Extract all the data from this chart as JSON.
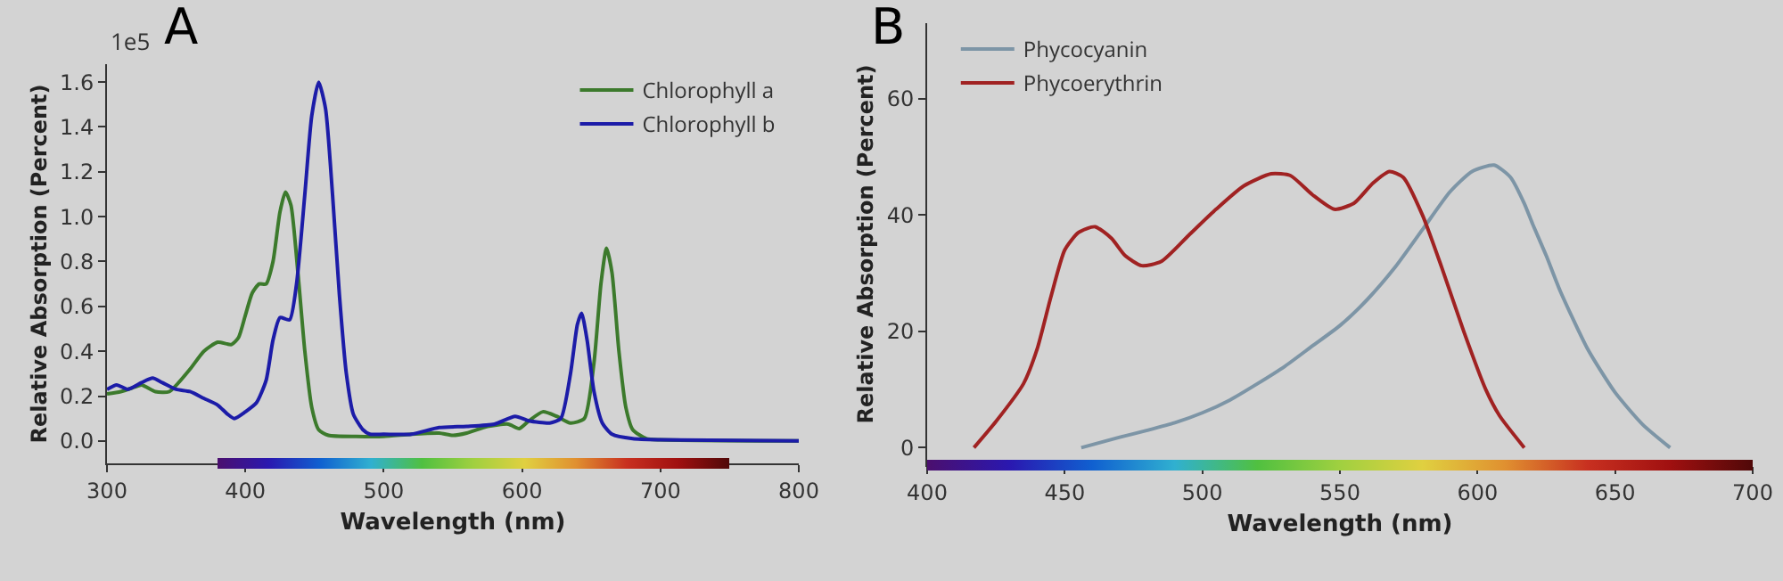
{
  "chart_data": [
    {
      "type": "line",
      "title": "A",
      "xlabel": "Wavelength (nm)",
      "ylabel": "Relative Absorption (Percent)",
      "annotations": [
        "1e5"
      ],
      "xlim": [
        300,
        800
      ],
      "xticks": [
        300,
        400,
        500,
        600,
        700,
        800
      ],
      "ylim": [
        -0.1,
        1.68
      ],
      "yticks": [
        {
          "value": 0,
          "label": "0.0"
        },
        0.2,
        0.4,
        0.6,
        0.8,
        {
          "value": 1,
          "label": "1.0"
        },
        1.2,
        1.4,
        1.6
      ],
      "grid": false,
      "legend": "top right",
      "series": [
        {
          "name": "Chlorophyll a",
          "color": "#3c7a2c",
          "x": [
            300,
            310,
            320,
            325,
            335,
            345,
            360,
            370,
            380,
            390,
            395,
            400,
            405,
            410,
            415,
            420,
            425,
            429,
            433,
            438,
            443,
            448,
            453,
            460,
            480,
            500,
            520,
            540,
            550,
            560,
            575,
            590,
            598,
            605,
            615,
            625,
            635,
            645,
            652,
            657,
            661,
            665,
            670,
            675,
            680,
            690,
            700,
            800
          ],
          "values": [
            0.21,
            0.22,
            0.24,
            0.25,
            0.22,
            0.22,
            0.32,
            0.4,
            0.44,
            0.43,
            0.46,
            0.56,
            0.66,
            0.7,
            0.7,
            0.8,
            1.02,
            1.11,
            1.05,
            0.75,
            0.4,
            0.15,
            0.05,
            0.025,
            0.02,
            0.02,
            0.03,
            0.035,
            0.025,
            0.035,
            0.065,
            0.075,
            0.055,
            0.09,
            0.13,
            0.11,
            0.08,
            0.1,
            0.35,
            0.7,
            0.86,
            0.75,
            0.4,
            0.15,
            0.05,
            0.01,
            0.005,
            0
          ]
        },
        {
          "name": "Chlorophyll b",
          "color": "#1c1ca8",
          "x": [
            300,
            307,
            315,
            325,
            333,
            340,
            350,
            360,
            370,
            380,
            387,
            392,
            400,
            408,
            415,
            420,
            425,
            432,
            437,
            443,
            448,
            453,
            458,
            463,
            468,
            473,
            478,
            485,
            490,
            500,
            520,
            540,
            560,
            580,
            595,
            605,
            620,
            628,
            635,
            640,
            643,
            647,
            652,
            658,
            665,
            680,
            700,
            800
          ],
          "values": [
            0.23,
            0.25,
            0.23,
            0.26,
            0.28,
            0.26,
            0.23,
            0.22,
            0.19,
            0.16,
            0.12,
            0.1,
            0.13,
            0.17,
            0.27,
            0.45,
            0.55,
            0.54,
            0.7,
            1.1,
            1.45,
            1.6,
            1.48,
            1.1,
            0.65,
            0.3,
            0.12,
            0.05,
            0.03,
            0.03,
            0.03,
            0.06,
            0.065,
            0.075,
            0.11,
            0.09,
            0.08,
            0.1,
            0.3,
            0.52,
            0.57,
            0.45,
            0.22,
            0.08,
            0.03,
            0.01,
            0.005,
            0
          ]
        }
      ]
    },
    {
      "type": "line",
      "title": "B",
      "xlabel": "Wavelength (nm)",
      "ylabel": "Relative Absorption (Percent)",
      "xlim": [
        400,
        700
      ],
      "xticks": [
        400,
        450,
        500,
        550,
        600,
        650,
        700
      ],
      "ylim": [
        -3,
        73
      ],
      "yticks": [
        0,
        20,
        40,
        60
      ],
      "grid": false,
      "legend": "top left",
      "series": [
        {
          "name": "Phycocyanin",
          "color": "#7d95a6",
          "x": [
            456,
            470,
            480,
            490,
            500,
            510,
            520,
            530,
            540,
            550,
            560,
            570,
            580,
            590,
            598,
            606,
            612,
            617,
            620,
            625,
            630,
            640,
            650,
            660,
            670
          ],
          "values": [
            0,
            1.8,
            3,
            4.3,
            6,
            8.2,
            11,
            14,
            17.5,
            21,
            25.5,
            31,
            37.5,
            44,
            47.5,
            48.6,
            46.5,
            42,
            38.5,
            33,
            27,
            17,
            9.5,
            4,
            0
          ]
        },
        {
          "name": "Phycoerythrin",
          "color": "#a02222",
          "x": [
            417,
            425,
            435,
            440,
            445,
            450,
            455,
            461,
            467,
            472,
            478,
            485,
            495,
            505,
            515,
            525,
            532,
            540,
            548,
            555,
            562,
            568,
            573,
            580,
            587,
            595,
            603,
            608,
            617
          ],
          "values": [
            0,
            4.5,
            11,
            17,
            26,
            34,
            37,
            38,
            36,
            33,
            31.3,
            32,
            36.5,
            41,
            45,
            47.1,
            46.8,
            43.5,
            41,
            42,
            45.5,
            47.5,
            46.5,
            40,
            31,
            20,
            10,
            5.5,
            0
          ]
        }
      ]
    }
  ]
}
